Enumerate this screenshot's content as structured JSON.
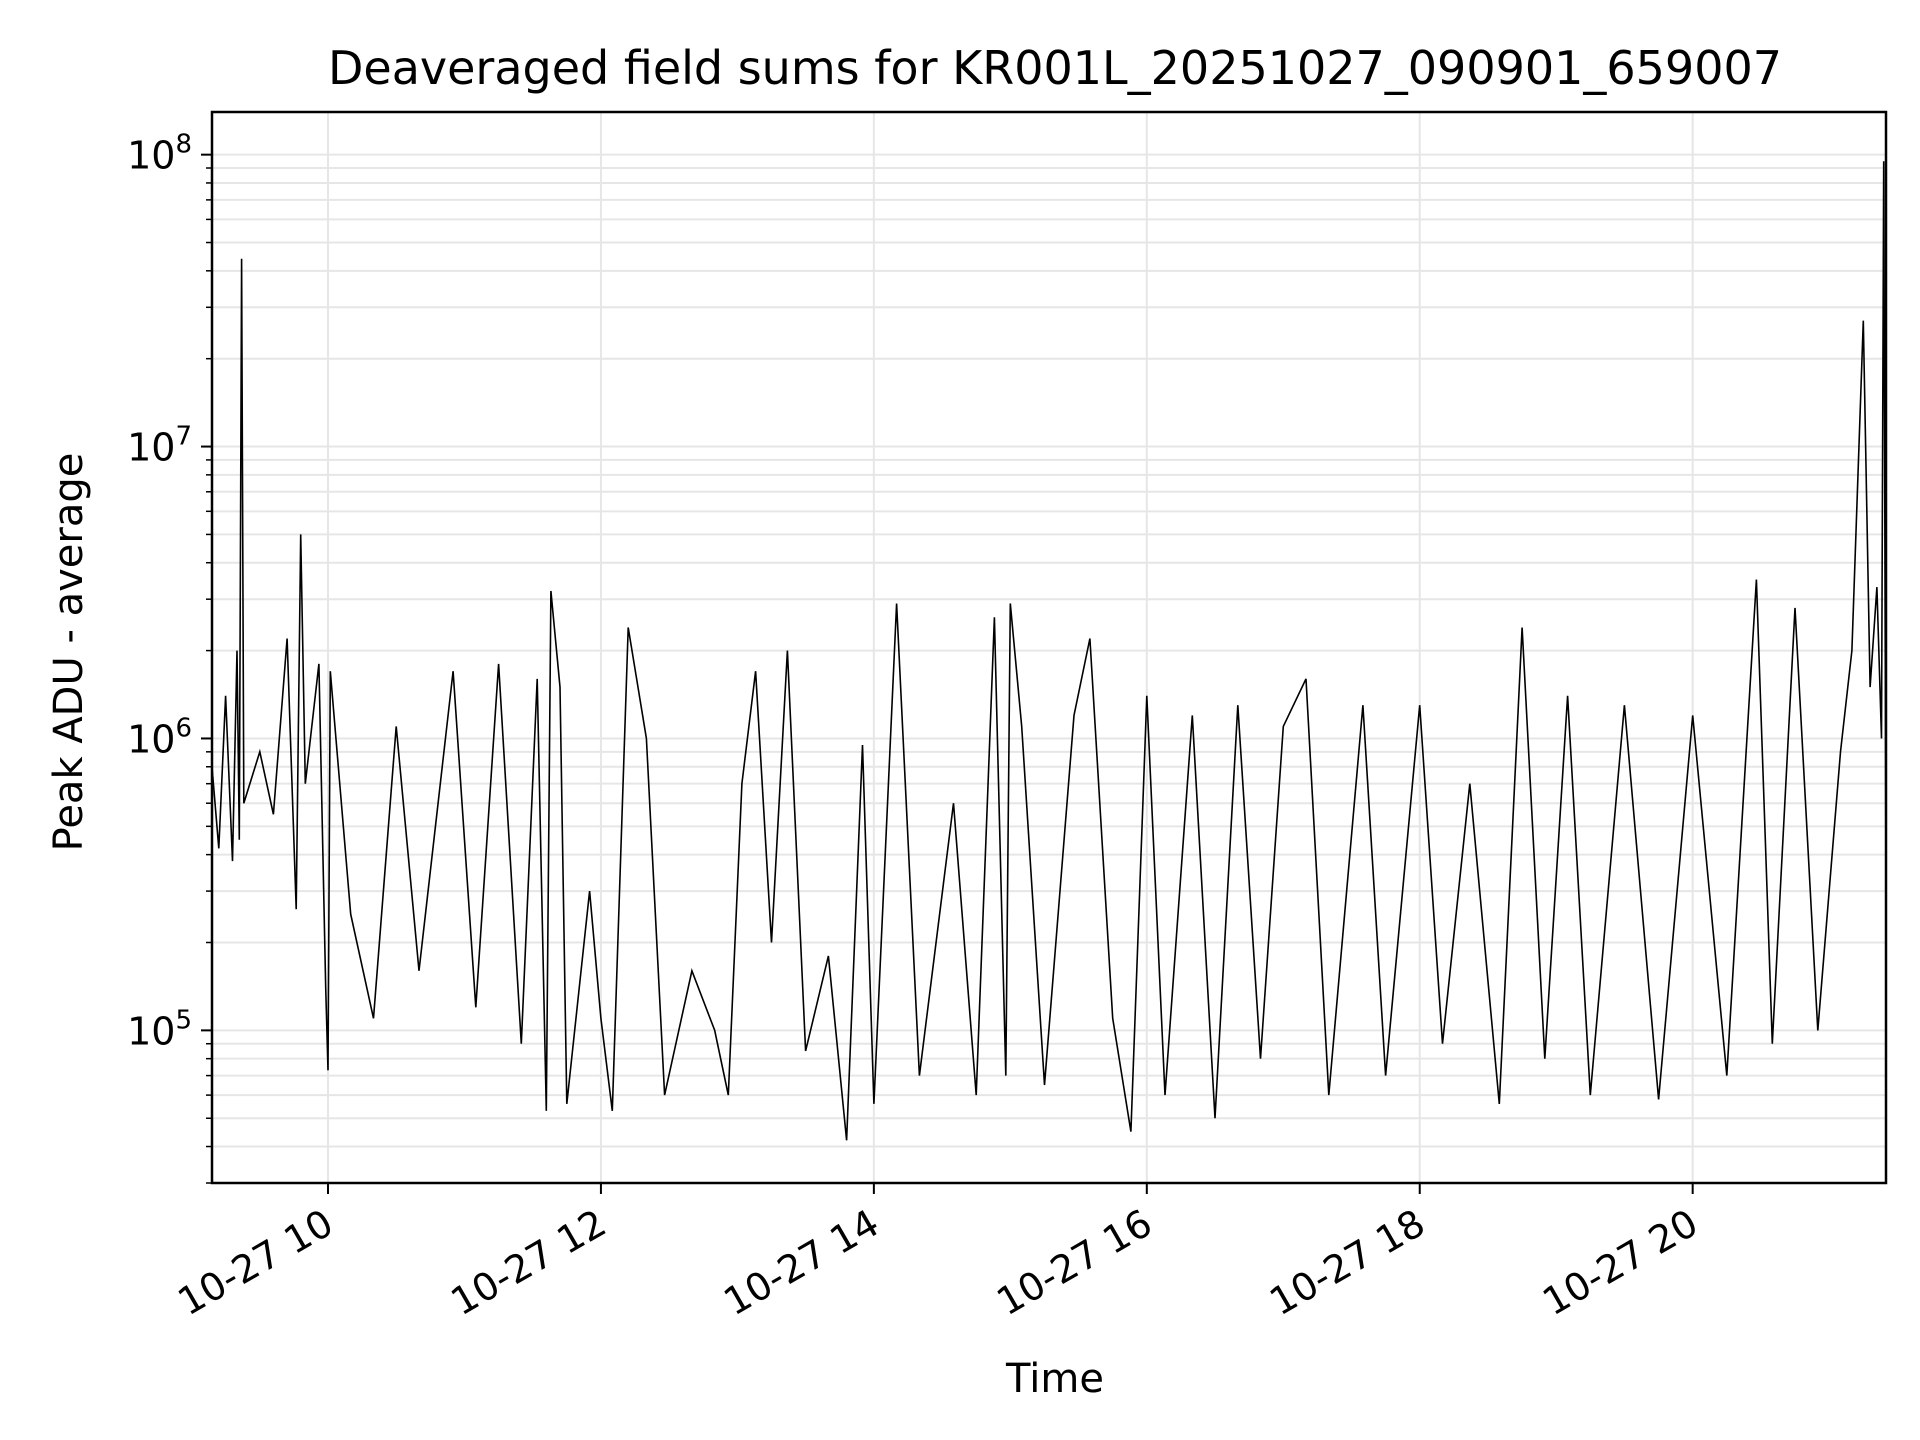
{
  "chart_data": {
    "type": "line",
    "title": "Deaveraged field sums for KR001L_20251027_090901_659007",
    "xlabel": "Time",
    "ylabel": "Peak ADU - average",
    "yscale": "log",
    "ylim": [
      30000,
      140000000
    ],
    "xlim": [
      "2025-10-27T09:09",
      "2025-10-27T21:25"
    ],
    "grid": true,
    "x_ticks": [
      {
        "value": "2025-10-27T10:00",
        "label": "10-27 10"
      },
      {
        "value": "2025-10-27T12:00",
        "label": "10-27 12"
      },
      {
        "value": "2025-10-27T14:00",
        "label": "10-27 14"
      },
      {
        "value": "2025-10-27T16:00",
        "label": "10-27 16"
      },
      {
        "value": "2025-10-27T18:00",
        "label": "10-27 18"
      },
      {
        "value": "2025-10-27T20:00",
        "label": "10-27 20"
      }
    ],
    "y_ticks": [
      {
        "value": 100000,
        "base": "10",
        "exp": "5"
      },
      {
        "value": 1000000,
        "base": "10",
        "exp": "6"
      },
      {
        "value": 10000000,
        "base": "10",
        "exp": "7"
      },
      {
        "value": 100000000,
        "base": "10",
        "exp": "8"
      }
    ],
    "series": [
      {
        "color": "#000000",
        "points": [
          [
            "2025-10-27T09:09",
            800000
          ],
          [
            "2025-10-27T09:12",
            420000
          ],
          [
            "2025-10-27T09:15",
            1400000
          ],
          [
            "2025-10-27T09:18",
            380000
          ],
          [
            "2025-10-27T09:20",
            2000000
          ],
          [
            "2025-10-27T09:21",
            450000
          ],
          [
            "2025-10-27T09:22",
            44000000
          ],
          [
            "2025-10-27T09:23",
            600000
          ],
          [
            "2025-10-27T09:30",
            900000
          ],
          [
            "2025-10-27T09:36",
            550000
          ],
          [
            "2025-10-27T09:42",
            2200000
          ],
          [
            "2025-10-27T09:46",
            260000
          ],
          [
            "2025-10-27T09:48",
            5000000
          ],
          [
            "2025-10-27T09:50",
            700000
          ],
          [
            "2025-10-27T09:56",
            1800000
          ],
          [
            "2025-10-27T09:59",
            140000
          ],
          [
            "2025-10-27T10:00",
            73000
          ],
          [
            "2025-10-27T10:01",
            1700000
          ],
          [
            "2025-10-27T10:10",
            250000
          ],
          [
            "2025-10-27T10:20",
            110000
          ],
          [
            "2025-10-27T10:30",
            1100000
          ],
          [
            "2025-10-27T10:40",
            160000
          ],
          [
            "2025-10-27T10:55",
            1700000
          ],
          [
            "2025-10-27T11:05",
            120000
          ],
          [
            "2025-10-27T11:15",
            1800000
          ],
          [
            "2025-10-27T11:25",
            90000
          ],
          [
            "2025-10-27T11:32",
            1600000
          ],
          [
            "2025-10-27T11:36",
            53000
          ],
          [
            "2025-10-27T11:38",
            3200000
          ],
          [
            "2025-10-27T11:42",
            1500000
          ],
          [
            "2025-10-27T11:45",
            56000
          ],
          [
            "2025-10-27T11:55",
            300000
          ],
          [
            "2025-10-27T12:00",
            110000
          ],
          [
            "2025-10-27T12:05",
            53000
          ],
          [
            "2025-10-27T12:12",
            2400000
          ],
          [
            "2025-10-27T12:20",
            1000000
          ],
          [
            "2025-10-27T12:28",
            60000
          ],
          [
            "2025-10-27T12:40",
            160000
          ],
          [
            "2025-10-27T12:50",
            100000
          ],
          [
            "2025-10-27T12:56",
            60000
          ],
          [
            "2025-10-27T13:02",
            700000
          ],
          [
            "2025-10-27T13:08",
            1700000
          ],
          [
            "2025-10-27T13:15",
            200000
          ],
          [
            "2025-10-27T13:22",
            2000000
          ],
          [
            "2025-10-27T13:30",
            85000
          ],
          [
            "2025-10-27T13:40",
            180000
          ],
          [
            "2025-10-27T13:48",
            42000
          ],
          [
            "2025-10-27T13:55",
            950000
          ],
          [
            "2025-10-27T14:00",
            56000
          ],
          [
            "2025-10-27T14:10",
            2900000
          ],
          [
            "2025-10-27T14:20",
            70000
          ],
          [
            "2025-10-27T14:35",
            600000
          ],
          [
            "2025-10-27T14:45",
            60000
          ],
          [
            "2025-10-27T14:53",
            2600000
          ],
          [
            "2025-10-27T14:58",
            70000
          ],
          [
            "2025-10-27T15:00",
            2900000
          ],
          [
            "2025-10-27T15:05",
            1100000
          ],
          [
            "2025-10-27T15:15",
            65000
          ],
          [
            "2025-10-27T15:28",
            1200000
          ],
          [
            "2025-10-27T15:35",
            2200000
          ],
          [
            "2025-10-27T15:45",
            110000
          ],
          [
            "2025-10-27T15:53",
            45000
          ],
          [
            "2025-10-27T16:00",
            1400000
          ],
          [
            "2025-10-27T16:08",
            60000
          ],
          [
            "2025-10-27T16:20",
            1200000
          ],
          [
            "2025-10-27T16:30",
            50000
          ],
          [
            "2025-10-27T16:40",
            1300000
          ],
          [
            "2025-10-27T16:50",
            80000
          ],
          [
            "2025-10-27T17:00",
            1100000
          ],
          [
            "2025-10-27T17:10",
            1600000
          ],
          [
            "2025-10-27T17:20",
            60000
          ],
          [
            "2025-10-27T17:35",
            1300000
          ],
          [
            "2025-10-27T17:45",
            70000
          ],
          [
            "2025-10-27T18:00",
            1300000
          ],
          [
            "2025-10-27T18:10",
            90000
          ],
          [
            "2025-10-27T18:22",
            700000
          ],
          [
            "2025-10-27T18:35",
            56000
          ],
          [
            "2025-10-27T18:45",
            2400000
          ],
          [
            "2025-10-27T18:55",
            80000
          ],
          [
            "2025-10-27T19:05",
            1400000
          ],
          [
            "2025-10-27T19:15",
            60000
          ],
          [
            "2025-10-27T19:30",
            1300000
          ],
          [
            "2025-10-27T19:45",
            58000
          ],
          [
            "2025-10-27T20:00",
            1200000
          ],
          [
            "2025-10-27T20:15",
            70000
          ],
          [
            "2025-10-27T20:28",
            3500000
          ],
          [
            "2025-10-27T20:35",
            90000
          ],
          [
            "2025-10-27T20:45",
            2800000
          ],
          [
            "2025-10-27T20:55",
            100000
          ],
          [
            "2025-10-27T21:05",
            900000
          ],
          [
            "2025-10-27T21:10",
            2000000
          ],
          [
            "2025-10-27T21:15",
            27000000
          ],
          [
            "2025-10-27T21:18",
            1500000
          ],
          [
            "2025-10-27T21:21",
            3300000
          ],
          [
            "2025-10-27T21:23",
            1000000
          ],
          [
            "2025-10-27T21:24",
            95000000
          ],
          [
            "2025-10-27T21:25",
            300000
          ]
        ]
      }
    ]
  }
}
